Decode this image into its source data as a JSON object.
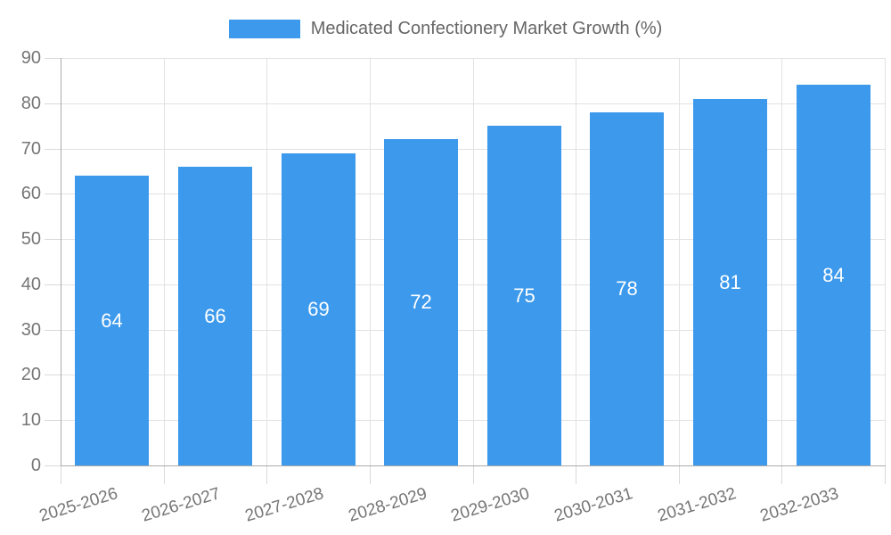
{
  "chart_data": {
    "type": "bar",
    "title": "Medicated Confectionery Market Growth (%)",
    "categories": [
      "2025-2026",
      "2026-2027",
      "2027-2028",
      "2028-2029",
      "2029-2030",
      "2030-2031",
      "2031-2032",
      "2032-2033"
    ],
    "values": [
      64,
      66,
      69,
      72,
      75,
      78,
      81,
      84
    ],
    "xlabel": "",
    "ylabel": "",
    "ylim": [
      0,
      90
    ],
    "ytick_step": 10,
    "grid": true,
    "legend_position": "top",
    "bar_color": "#3c99ec",
    "value_label_color": "#ffffff",
    "grid_color": "#e2e2e2",
    "axis_color": "#ababab",
    "tick_label_color": "#757575",
    "legend_text_color": "#666666",
    "background_color": "#ffffff"
  }
}
